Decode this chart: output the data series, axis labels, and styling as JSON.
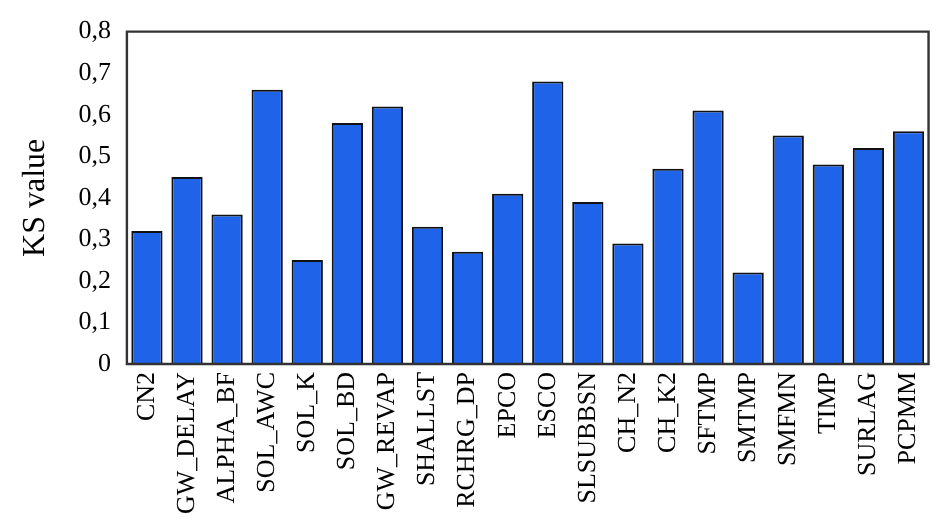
{
  "chart_data": {
    "type": "bar",
    "ylabel": "KS value",
    "categories": [
      "CN2",
      "GW_DELAY",
      "ALPHA_BF",
      "SOL_AWC",
      "SOL_K",
      "SOL_BD",
      "GW_REVAP",
      "SHALLST",
      "RCHRG_DP",
      "EPCO",
      "ESCO",
      "SLSUBBSN",
      "CH_N2",
      "CH_K2",
      "SFTMP",
      "SMTMP",
      "SMFMN",
      "TIMP",
      "SURLAG",
      "PCPMM"
    ],
    "values": [
      0.32,
      0.45,
      0.36,
      0.66,
      0.25,
      0.58,
      0.62,
      0.33,
      0.27,
      0.41,
      0.68,
      0.39,
      0.29,
      0.47,
      0.61,
      0.22,
      0.55,
      0.48,
      0.52,
      0.56
    ],
    "color": "#1f63e8",
    "ylim": [
      0,
      0.8
    ],
    "yticks": [
      {
        "value": 0,
        "label": "0"
      },
      {
        "value": 0.1,
        "label": "0,1"
      },
      {
        "value": 0.2,
        "label": "0,2"
      },
      {
        "value": 0.3,
        "label": "0,3"
      },
      {
        "value": 0.4,
        "label": "0,4"
      },
      {
        "value": 0.5,
        "label": "0,5"
      },
      {
        "value": 0.6,
        "label": "0,6"
      },
      {
        "value": 0.7,
        "label": "0,7"
      },
      {
        "value": 0.8,
        "label": "0,8"
      }
    ],
    "grid": false,
    "legend": false
  }
}
